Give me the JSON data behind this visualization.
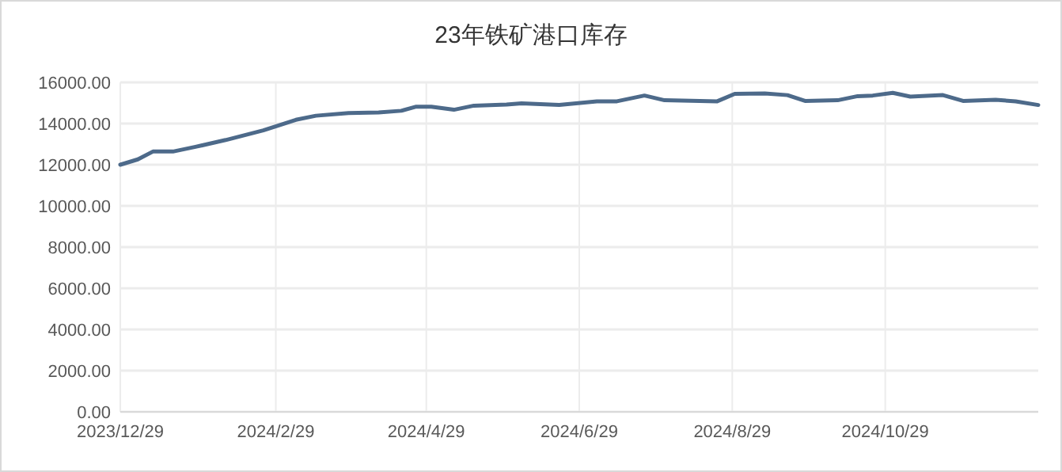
{
  "chart_data": {
    "type": "line",
    "title": "23年铁矿港口库存",
    "x": [
      "2023-12-29",
      "2024-01-05",
      "2024-01-11",
      "2024-01-19",
      "2024-01-28",
      "2024-02-09",
      "2024-02-24",
      "2024-03-08",
      "2024-03-16",
      "2024-03-29",
      "2024-04-10",
      "2024-04-19",
      "2024-04-25",
      "2024-05-01",
      "2024-05-10",
      "2024-05-18",
      "2024-05-31",
      "2024-06-06",
      "2024-06-21",
      "2024-07-06",
      "2024-07-14",
      "2024-07-25",
      "2024-08-02",
      "2024-08-23",
      "2024-08-30",
      "2024-09-11",
      "2024-09-20",
      "2024-09-27",
      "2024-10-10",
      "2024-10-18",
      "2024-10-24",
      "2024-11-01",
      "2024-11-08",
      "2024-11-21",
      "2024-11-29",
      "2024-12-12",
      "2024-12-20",
      "2024-12-29"
    ],
    "series": [
      {
        "color": "#4d6a8a",
        "values": [
          12000,
          12260,
          12640,
          12640,
          12870,
          13200,
          13670,
          14180,
          14380,
          14510,
          14540,
          14620,
          14820,
          14820,
          14670,
          14870,
          14920,
          14980,
          14900,
          15080,
          15080,
          15360,
          15130,
          15080,
          15440,
          15460,
          15380,
          15100,
          15130,
          15330,
          15360,
          15490,
          15310,
          15380,
          15100,
          15150,
          15080,
          14900
        ]
      }
    ],
    "xlim": [
      "2023-12-29",
      "2024-12-29"
    ],
    "xticks": [
      {
        "value": "2023-12-29",
        "label": "2023/12/29"
      },
      {
        "value": "2024-02-29",
        "label": "2024/2/29"
      },
      {
        "value": "2024-04-29",
        "label": "2024/4/29"
      },
      {
        "value": "2024-06-29",
        "label": "2024/6/29"
      },
      {
        "value": "2024-08-29",
        "label": "2024/8/29"
      },
      {
        "value": "2024-10-29",
        "label": "2024/10/29"
      }
    ],
    "ylim": [
      0,
      16000
    ],
    "yticks": [
      {
        "value": 0,
        "label": "0.00"
      },
      {
        "value": 2000,
        "label": "2000.00"
      },
      {
        "value": 4000,
        "label": "4000.00"
      },
      {
        "value": 6000,
        "label": "6000.00"
      },
      {
        "value": 8000,
        "label": "8000.00"
      },
      {
        "value": 10000,
        "label": "10000.00"
      },
      {
        "value": 12000,
        "label": "12000.00"
      },
      {
        "value": 14000,
        "label": "14000.00"
      },
      {
        "value": 16000,
        "label": "16000.00"
      }
    ],
    "grid": true,
    "marker": "none",
    "line_style": "solid"
  }
}
